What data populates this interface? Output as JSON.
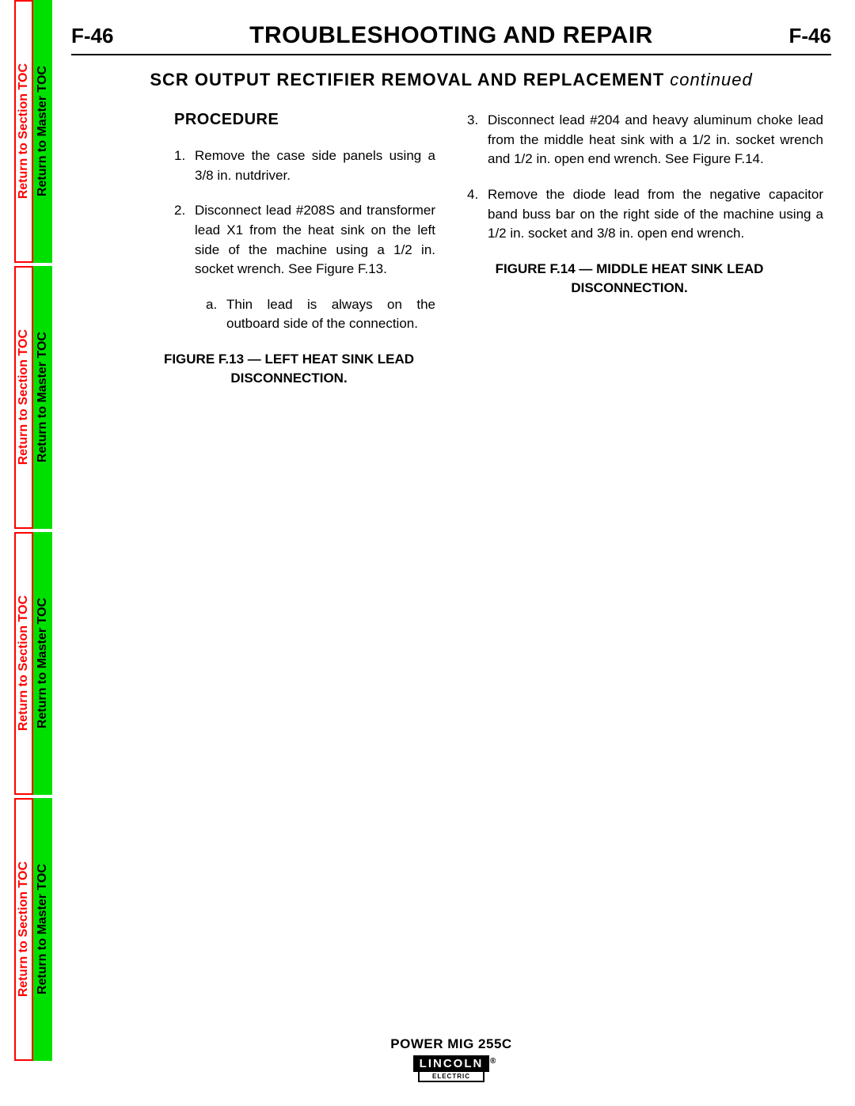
{
  "side_tabs": {
    "section_label": "Return to Section TOC",
    "master_label": "Return to Master TOC",
    "section_color": "#ff0000",
    "master_bg": "#00e000",
    "segment_count": 4
  },
  "header": {
    "page_num_left": "F-46",
    "section_title": "TROUBLESHOOTING AND REPAIR",
    "page_num_right": "F-46"
  },
  "subtitle": {
    "main": "SCR  OUTPUT  RECTIFIER  REMOVAL  AND  REPLACEMENT",
    "suffix": "continued"
  },
  "procedure_heading": "PROCEDURE",
  "col1": {
    "steps": [
      {
        "num": "1.",
        "text": "Remove the case side panels using a 3/8 in. nutdriver."
      },
      {
        "num": "2.",
        "text": "Disconnect lead #208S and transformer lead X1 from the heat sink on the left side of the machine using a 1/2 in. socket wrench. See Figure F.13."
      }
    ],
    "substep": {
      "letter": "a.",
      "text": "Thin lead is always on the outboard side of the connection."
    },
    "figure_caption": "FIGURE F.13 — LEFT  HEAT  SINK LEAD  DISCONNECTION."
  },
  "col2": {
    "steps": [
      {
        "num": "3.",
        "text": "Disconnect lead #204 and heavy aluminum choke lead from the middle heat sink with a 1/2 in. socket wrench and 1/2 in. open end wrench.  See Figure F.14."
      },
      {
        "num": "4.",
        "text": "Remove the diode lead from the negative capacitor band buss bar on the right side of the machine using a 1/2 in. socket and 3/8 in. open end wrench."
      }
    ],
    "figure_caption": "FIGURE F.14 — MIDDLE  HEAT  SINK LEAD  DISCONNECTION."
  },
  "footer": {
    "product": "POWER MIG 255C",
    "logo_top": "LINCOLN",
    "logo_bottom": "ELECTRIC",
    "reg": "®"
  }
}
